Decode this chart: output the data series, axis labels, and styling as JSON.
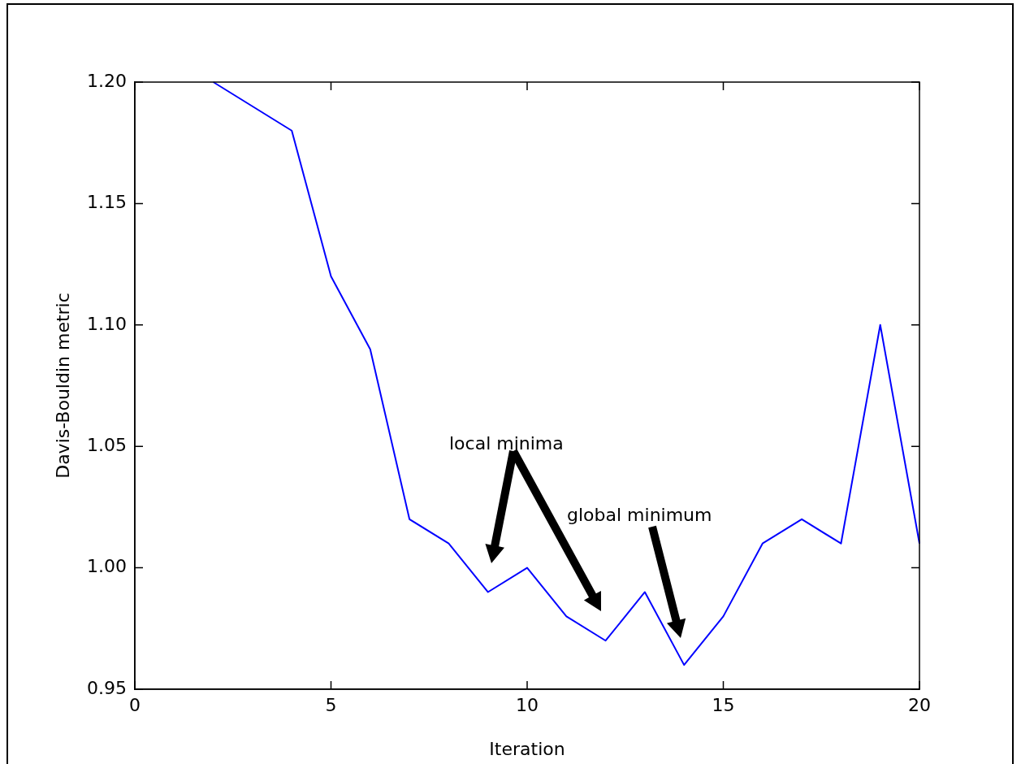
{
  "chart_data": {
    "type": "line",
    "xlabel": "Iteration",
    "ylabel": "Davis-Bouldin metric",
    "series": [
      {
        "color": "#0000ff",
        "x": [
          2,
          4,
          5,
          6,
          7,
          8,
          9,
          10,
          11,
          12,
          13,
          14,
          15,
          16,
          17,
          18,
          19,
          20
        ],
        "values": [
          1.2,
          1.18,
          1.12,
          1.09,
          1.02,
          1.01,
          0.99,
          1.0,
          0.98,
          0.97,
          0.99,
          0.96,
          0.98,
          1.01,
          1.02,
          1.01,
          1.1,
          1.01
        ]
      }
    ],
    "xlim": [
      0,
      20
    ],
    "xticks": [
      0,
      5,
      10,
      15,
      20
    ],
    "ylim": [
      0.95,
      1.2
    ],
    "yticks": [
      {
        "value": 0.95,
        "label": "0.95"
      },
      {
        "value": 1.0,
        "label": "1.00"
      },
      {
        "value": 1.05,
        "label": "1.05"
      },
      {
        "value": 1.1,
        "label": "1.10"
      },
      {
        "value": 1.15,
        "label": "1.15"
      },
      {
        "value": 1.2,
        "label": "1.20"
      }
    ],
    "annotations": [
      "local minima",
      "global minimum"
    ],
    "grid": false,
    "legend": false,
    "marker": "none",
    "line_style": "solid"
  }
}
